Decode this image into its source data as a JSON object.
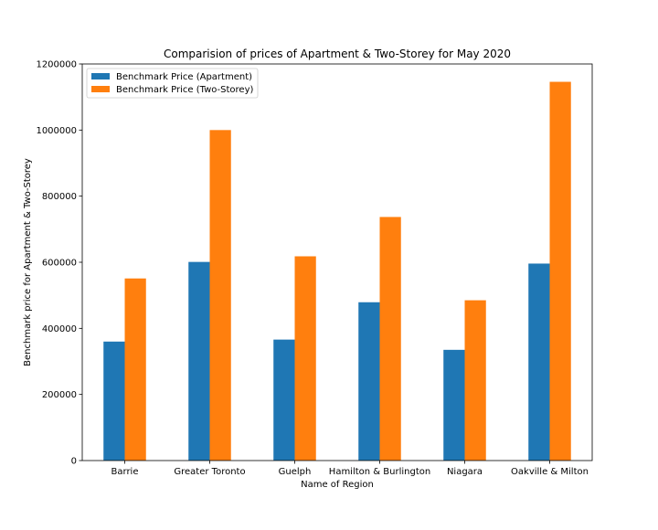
{
  "chart_data": {
    "type": "bar",
    "title": "Comparision of prices of Apartment & Two-Storey for May 2020",
    "xlabel": "Name of Region",
    "ylabel": "Benchmark price for Apartment & Two-Storey",
    "categories": [
      "Barrie",
      "Greater Toronto",
      "Guelph",
      "Hamilton & Burlington",
      "Niagara",
      "Oakville & Milton"
    ],
    "series": [
      {
        "name": "Benchmark Price (Apartment)",
        "color": "#1f77b4",
        "values": [
          360000,
          601000,
          366000,
          479000,
          335000,
          596000
        ]
      },
      {
        "name": "Benchmark Price (Two-Storey)",
        "color": "#ff7f0e",
        "values": [
          551000,
          1000000,
          618000,
          737000,
          485000,
          1146000
        ]
      }
    ],
    "ylim": [
      0,
      1200000
    ],
    "yticks": [
      0,
      200000,
      400000,
      600000,
      800000,
      1000000,
      1200000
    ],
    "ytick_labels": [
      "0",
      "200000",
      "400000",
      "600000",
      "800000",
      "1000000",
      "1200000"
    ],
    "grid": false,
    "legend_position": "upper-left"
  }
}
